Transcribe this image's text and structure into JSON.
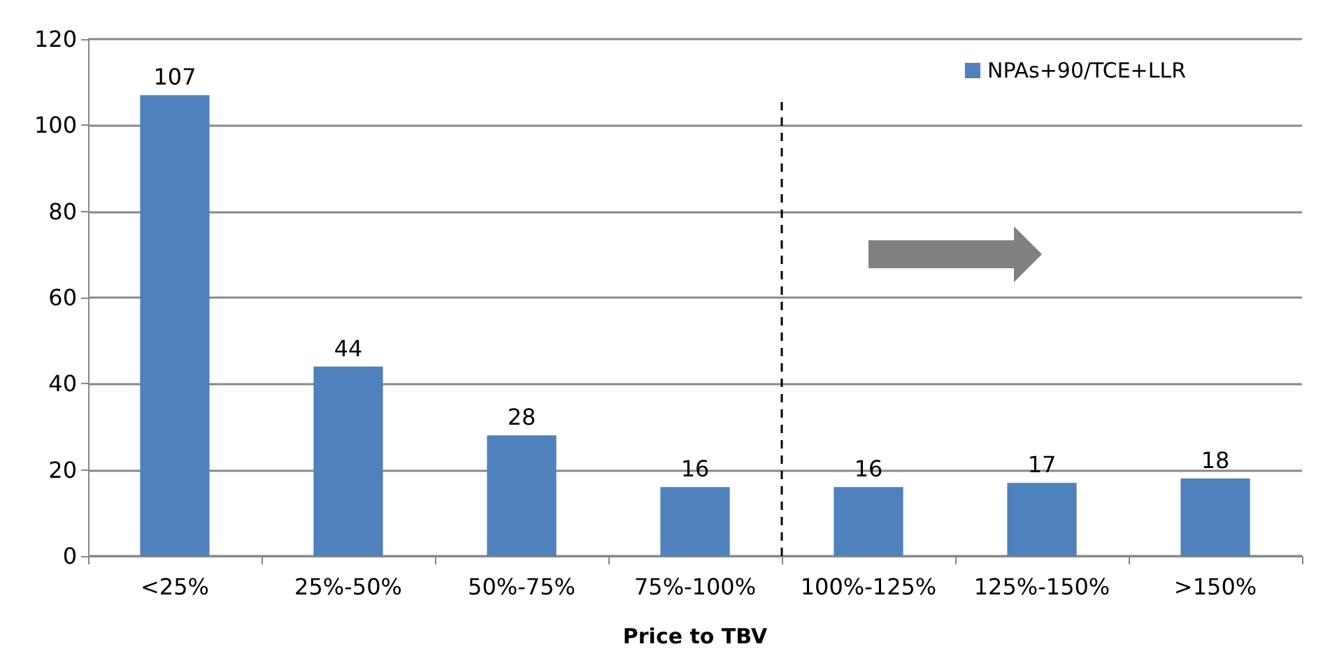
{
  "chart_data": {
    "type": "bar",
    "xlabel": "Price to TBV",
    "categories": [
      "<25%",
      "25%-50%",
      "50%-75%",
      "75%-100%",
      "100%-125%",
      "125%-150%",
      ">150%"
    ],
    "series": [
      {
        "name": "NPAs+90/TCE+LLR",
        "color": "#4f81bd",
        "values": [
          107,
          44,
          28,
          16,
          16,
          17,
          18
        ]
      }
    ],
    "data_labels": true,
    "ylim": [
      0,
      120
    ],
    "yticks": [
      0,
      20,
      40,
      60,
      80,
      100,
      120
    ],
    "grid": "y",
    "legend": "top right",
    "ref_lines": [
      {
        "axis": "x",
        "value": "100%-125%",
        "color": "#000000",
        "line_style": "dashed"
      }
    ]
  }
}
